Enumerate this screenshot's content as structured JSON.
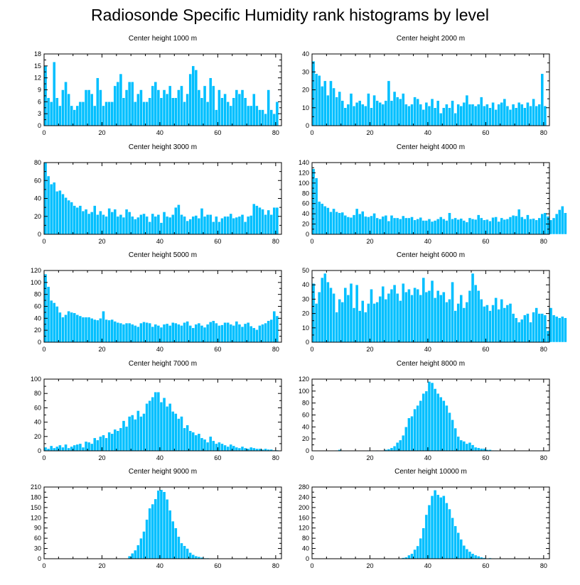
{
  "title": "Radiosonde Specific Humidity rank histograms by level",
  "colors": {
    "bar": "#00bfff",
    "bar_edge": "#ffffff",
    "axis": "#000000"
  },
  "chart_data": [
    {
      "type": "bar",
      "title": "Center height 1000 m",
      "xlabel": "",
      "ylabel": "",
      "xlim": [
        0,
        82
      ],
      "xticks": [
        0,
        20,
        40,
        60,
        80
      ],
      "ylim": [
        0,
        18
      ],
      "yticks": [
        0,
        3,
        6,
        9,
        12,
        15,
        18
      ],
      "x_start": 0,
      "values": [
        15,
        7,
        6,
        16,
        7,
        5,
        9,
        11,
        8,
        5,
        4,
        5,
        6,
        6,
        9,
        9,
        8,
        5,
        12,
        9,
        5,
        6,
        6,
        6,
        10,
        11,
        13,
        7,
        9,
        11,
        11,
        6,
        8,
        9,
        6,
        6,
        7,
        10,
        11,
        9,
        7,
        9,
        8,
        10,
        7,
        7,
        9,
        10,
        6,
        8,
        13,
        15,
        14,
        9,
        7,
        10,
        6,
        12,
        10,
        4,
        9,
        7,
        8,
        6,
        5,
        7,
        9,
        8,
        9,
        7,
        5,
        5,
        8,
        5,
        4,
        4,
        3,
        9,
        4,
        3,
        6
      ],
      "values_note": "estimated from bar heights"
    },
    {
      "type": "bar",
      "title": "Center height 2000 m",
      "xlabel": "",
      "ylabel": "",
      "xlim": [
        0,
        82
      ],
      "xticks": [
        0,
        20,
        40,
        60,
        80
      ],
      "ylim": [
        0,
        40
      ],
      "yticks": [
        0,
        10,
        20,
        30,
        40
      ],
      "x_start": 0,
      "values": [
        36,
        29,
        28,
        22,
        25,
        17,
        25,
        21,
        16,
        19,
        14,
        10,
        12,
        18,
        11,
        13,
        14,
        12,
        11,
        18,
        10,
        17,
        14,
        13,
        12,
        14,
        25,
        14,
        19,
        16,
        15,
        18,
        12,
        11,
        12,
        16,
        15,
        12,
        9,
        13,
        11,
        15,
        10,
        14,
        7,
        10,
        12,
        10,
        14,
        7,
        12,
        11,
        13,
        17,
        12,
        12,
        11,
        12,
        16,
        11,
        12,
        10,
        13,
        9,
        12,
        13,
        15,
        11,
        9,
        12,
        10,
        13,
        12,
        10,
        13,
        11,
        15,
        11,
        12,
        29,
        11
      ],
      "values_note": "estimated from bar heights"
    },
    {
      "type": "bar",
      "title": "Center height 3000 m",
      "xlabel": "",
      "ylabel": "",
      "xlim": [
        0,
        82
      ],
      "xticks": [
        0,
        20,
        40,
        60,
        80
      ],
      "ylim": [
        0,
        80
      ],
      "yticks": [
        0,
        20,
        40,
        60,
        80
      ],
      "x_start": 0,
      "values": [
        80,
        65,
        56,
        58,
        48,
        49,
        45,
        41,
        38,
        36,
        32,
        30,
        32,
        26,
        28,
        23,
        25,
        32,
        22,
        26,
        22,
        20,
        29,
        25,
        28,
        20,
        22,
        19,
        28,
        25,
        20,
        17,
        19,
        22,
        23,
        20,
        14,
        23,
        20,
        22,
        13,
        25,
        20,
        19,
        22,
        30,
        33,
        22,
        20,
        15,
        17,
        20,
        21,
        18,
        29,
        20,
        22,
        22,
        14,
        20,
        14,
        18,
        20,
        20,
        23,
        18,
        19,
        20,
        22,
        14,
        20,
        21,
        34,
        32,
        30,
        28,
        22,
        27,
        22,
        30,
        30
      ],
      "values_note": "estimated from bar heights"
    },
    {
      "type": "bar",
      "title": "Center height 4000 m",
      "xlabel": "",
      "ylabel": "",
      "xlim": [
        0,
        82
      ],
      "xticks": [
        0,
        20,
        40,
        60,
        80
      ],
      "ylim": [
        0,
        140
      ],
      "yticks": [
        0,
        20,
        40,
        60,
        80,
        100,
        120,
        140
      ],
      "x_start": 0,
      "values": [
        128,
        110,
        64,
        60,
        55,
        52,
        44,
        50,
        44,
        42,
        43,
        37,
        34,
        33,
        38,
        50,
        40,
        45,
        35,
        34,
        36,
        41,
        32,
        30,
        35,
        37,
        26,
        37,
        32,
        32,
        30,
        36,
        32,
        32,
        34,
        28,
        30,
        33,
        27,
        27,
        30,
        25,
        27,
        30,
        34,
        30,
        27,
        42,
        30,
        32,
        29,
        31,
        27,
        24,
        32,
        30,
        29,
        38,
        32,
        28,
        29,
        26,
        33,
        34,
        25,
        32,
        29,
        30,
        34,
        37,
        36,
        49,
        34,
        30,
        38,
        30,
        31,
        28,
        32,
        40,
        42,
        35,
        28,
        32,
        40,
        48,
        55,
        42
      ],
      "values_note": "estimated from bar heights"
    },
    {
      "type": "bar",
      "title": "Center height 5000 m",
      "xlabel": "",
      "ylabel": "",
      "xlim": [
        0,
        82
      ],
      "xticks": [
        0,
        20,
        40,
        60,
        80
      ],
      "ylim": [
        0,
        120
      ],
      "yticks": [
        0,
        20,
        40,
        60,
        80,
        100,
        120
      ],
      "x_start": 0,
      "values": [
        114,
        93,
        70,
        66,
        60,
        50,
        42,
        46,
        52,
        50,
        49,
        46,
        44,
        42,
        42,
        42,
        40,
        38,
        37,
        40,
        52,
        38,
        37,
        38,
        35,
        33,
        32,
        30,
        32,
        32,
        30,
        28,
        26,
        32,
        34,
        33,
        32,
        26,
        30,
        28,
        25,
        30,
        31,
        28,
        33,
        32,
        30,
        28,
        33,
        35,
        28,
        24,
        30,
        32,
        28,
        25,
        30,
        34,
        36,
        32,
        28,
        29,
        33,
        33,
        30,
        28,
        35,
        30,
        26,
        31,
        33,
        27,
        24,
        21,
        28,
        30,
        32,
        36,
        38,
        52,
        44
      ],
      "values_note": "estimated from bar heights"
    },
    {
      "type": "bar",
      "title": "Center height 6000 m",
      "xlabel": "",
      "ylabel": "",
      "xlim": [
        0,
        82
      ],
      "xticks": [
        0,
        20,
        40,
        60,
        80
      ],
      "ylim": [
        0,
        50
      ],
      "yticks": [
        0,
        10,
        20,
        30,
        40,
        50
      ],
      "x_start": 0,
      "values": [
        41,
        27,
        35,
        45,
        48,
        42,
        38,
        34,
        21,
        30,
        28,
        38,
        33,
        41,
        24,
        40,
        22,
        29,
        21,
        27,
        37,
        27,
        28,
        32,
        39,
        30,
        34,
        37,
        40,
        34,
        29,
        41,
        35,
        37,
        33,
        38,
        37,
        33,
        45,
        35,
        36,
        43,
        31,
        36,
        33,
        35,
        28,
        30,
        42,
        22,
        27,
        33,
        24,
        28,
        36,
        48,
        40,
        36,
        30,
        25,
        26,
        22,
        26,
        31,
        23,
        30,
        24,
        26,
        27,
        20,
        17,
        14,
        16,
        19,
        20,
        14,
        21,
        24,
        20,
        20,
        19,
        8,
        24,
        19,
        18,
        17,
        18,
        17
      ],
      "values_note": "estimated from bar heights"
    },
    {
      "type": "bar",
      "title": "Center height 7000 m",
      "xlabel": "",
      "ylabel": "",
      "xlim": [
        0,
        82
      ],
      "xticks": [
        0,
        20,
        40,
        60,
        80
      ],
      "ylim": [
        0,
        100
      ],
      "yticks": [
        0,
        20,
        40,
        60,
        80,
        100
      ],
      "x_start": 0,
      "values": [
        5,
        3,
        7,
        4,
        6,
        8,
        5,
        9,
        4,
        6,
        8,
        9,
        10,
        5,
        13,
        12,
        10,
        18,
        15,
        20,
        22,
        18,
        26,
        24,
        30,
        28,
        32,
        42,
        34,
        48,
        50,
        44,
        56,
        48,
        52,
        66,
        70,
        75,
        82,
        82,
        68,
        74,
        62,
        66,
        55,
        52,
        45,
        48,
        32,
        36,
        28,
        26,
        22,
        24,
        18,
        16,
        12,
        20,
        14,
        10,
        12,
        10,
        8,
        6,
        9,
        7,
        5,
        4,
        6,
        4,
        3,
        5,
        4,
        3,
        3,
        2,
        3,
        2,
        2,
        1,
        1
      ],
      "values_note": "estimated from bar heights"
    },
    {
      "type": "bar",
      "title": "Center height 8000 m",
      "xlabel": "",
      "ylabel": "",
      "xlim": [
        0,
        82
      ],
      "xticks": [
        0,
        20,
        40,
        60,
        80
      ],
      "ylim": [
        0,
        120
      ],
      "yticks": [
        0,
        20,
        40,
        60,
        80,
        100,
        120
      ],
      "x_start": 0,
      "values": [
        0,
        0,
        0,
        0,
        0,
        0,
        0,
        0,
        1,
        2,
        0,
        0,
        0,
        0,
        0,
        0,
        0,
        0,
        0,
        1,
        0,
        0,
        1,
        0,
        0,
        2,
        3,
        5,
        8,
        14,
        18,
        26,
        40,
        55,
        58,
        70,
        76,
        84,
        96,
        100,
        116,
        114,
        104,
        96,
        90,
        84,
        76,
        64,
        52,
        38,
        24,
        18,
        16,
        12,
        14,
        10,
        6,
        5,
        4,
        4,
        2,
        2,
        1,
        1,
        0,
        0,
        0,
        0,
        0,
        0,
        0,
        0,
        0,
        0,
        0,
        0,
        0,
        0,
        0,
        0,
        0
      ],
      "values_note": "estimated from bar heights"
    },
    {
      "type": "bar",
      "title": "Center height 9000 m",
      "xlabel": "",
      "ylabel": "",
      "xlim": [
        0,
        82
      ],
      "xticks": [
        0,
        20,
        40,
        60,
        80
      ],
      "ylim": [
        0,
        210
      ],
      "yticks": [
        0,
        30,
        60,
        90,
        120,
        150,
        180,
        210
      ],
      "x_start": 0,
      "values": [
        0,
        0,
        0,
        0,
        0,
        0,
        0,
        0,
        0,
        0,
        0,
        0,
        0,
        0,
        0,
        0,
        0,
        0,
        0,
        0,
        0,
        0,
        0,
        0,
        0,
        0,
        0,
        0,
        0,
        8,
        16,
        25,
        40,
        60,
        80,
        115,
        148,
        160,
        175,
        200,
        202,
        196,
        174,
        142,
        110,
        90,
        65,
        46,
        38,
        30,
        18,
        12,
        8,
        6,
        4,
        2,
        2,
        1,
        1,
        0,
        0,
        0,
        0,
        0,
        0,
        0,
        0,
        0,
        0,
        0,
        0,
        0,
        0,
        0,
        0,
        0,
        0,
        0,
        0,
        0,
        0
      ],
      "values_note": "estimated from bar heights"
    },
    {
      "type": "bar",
      "title": "Center height 10000 m",
      "xlabel": "",
      "ylabel": "",
      "xlim": [
        0,
        82
      ],
      "xticks": [
        0,
        20,
        40,
        60,
        80
      ],
      "ylim": [
        0,
        280
      ],
      "yticks": [
        0,
        40,
        80,
        120,
        160,
        200,
        240,
        280
      ],
      "x_start": 0,
      "values": [
        0,
        0,
        0,
        0,
        0,
        0,
        0,
        0,
        0,
        0,
        0,
        0,
        0,
        0,
        0,
        0,
        0,
        0,
        0,
        0,
        0,
        0,
        0,
        0,
        0,
        0,
        0,
        0,
        0,
        0,
        2,
        4,
        6,
        14,
        20,
        36,
        50,
        80,
        120,
        172,
        210,
        246,
        268,
        250,
        240,
        246,
        218,
        194,
        160,
        128,
        102,
        76,
        52,
        38,
        28,
        20,
        14,
        10,
        6,
        4,
        2,
        3,
        2,
        1,
        1,
        1,
        0,
        0,
        0,
        0,
        0,
        0,
        0,
        0,
        0,
        0,
        0,
        0,
        0,
        0,
        0
      ],
      "values_note": "estimated from bar heights"
    }
  ]
}
